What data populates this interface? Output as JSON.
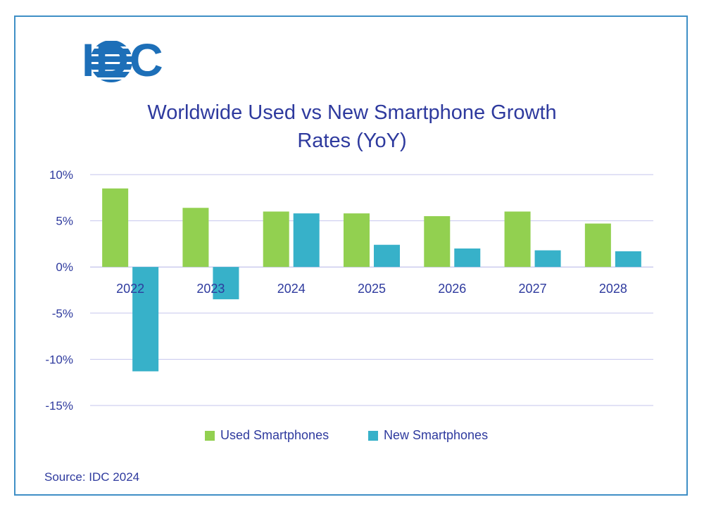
{
  "logo": {
    "text": "IDC",
    "color": "#1d6fb8"
  },
  "source": "Source: IDC 2024",
  "chart_data": {
    "type": "bar",
    "title": "Worldwide Used vs New Smartphone Growth Rates (YoY)",
    "title_lines": [
      "Worldwide Used vs New Smartphone Growth",
      "Rates (YoY)"
    ],
    "categories": [
      "2022",
      "2023",
      "2024",
      "2025",
      "2026",
      "2027",
      "2028"
    ],
    "series": [
      {
        "name": "Used Smartphones",
        "color": "#92d050",
        "values": [
          8.5,
          6.4,
          6.0,
          5.8,
          5.5,
          6.0,
          4.7
        ]
      },
      {
        "name": "New Smartphones",
        "color": "#37b1c9",
        "values": [
          -11.3,
          -3.5,
          5.8,
          2.4,
          2.0,
          1.8,
          1.7
        ]
      }
    ],
    "ylim": [
      -15,
      10
    ],
    "yticks": [
      10,
      5,
      0,
      -5,
      -10,
      -15
    ],
    "ytick_labels": [
      "10%",
      "5%",
      "0%",
      "-5%",
      "-10%",
      "-15%"
    ],
    "grid": true,
    "legend": "bottom",
    "xlabel": "",
    "ylabel": ""
  }
}
